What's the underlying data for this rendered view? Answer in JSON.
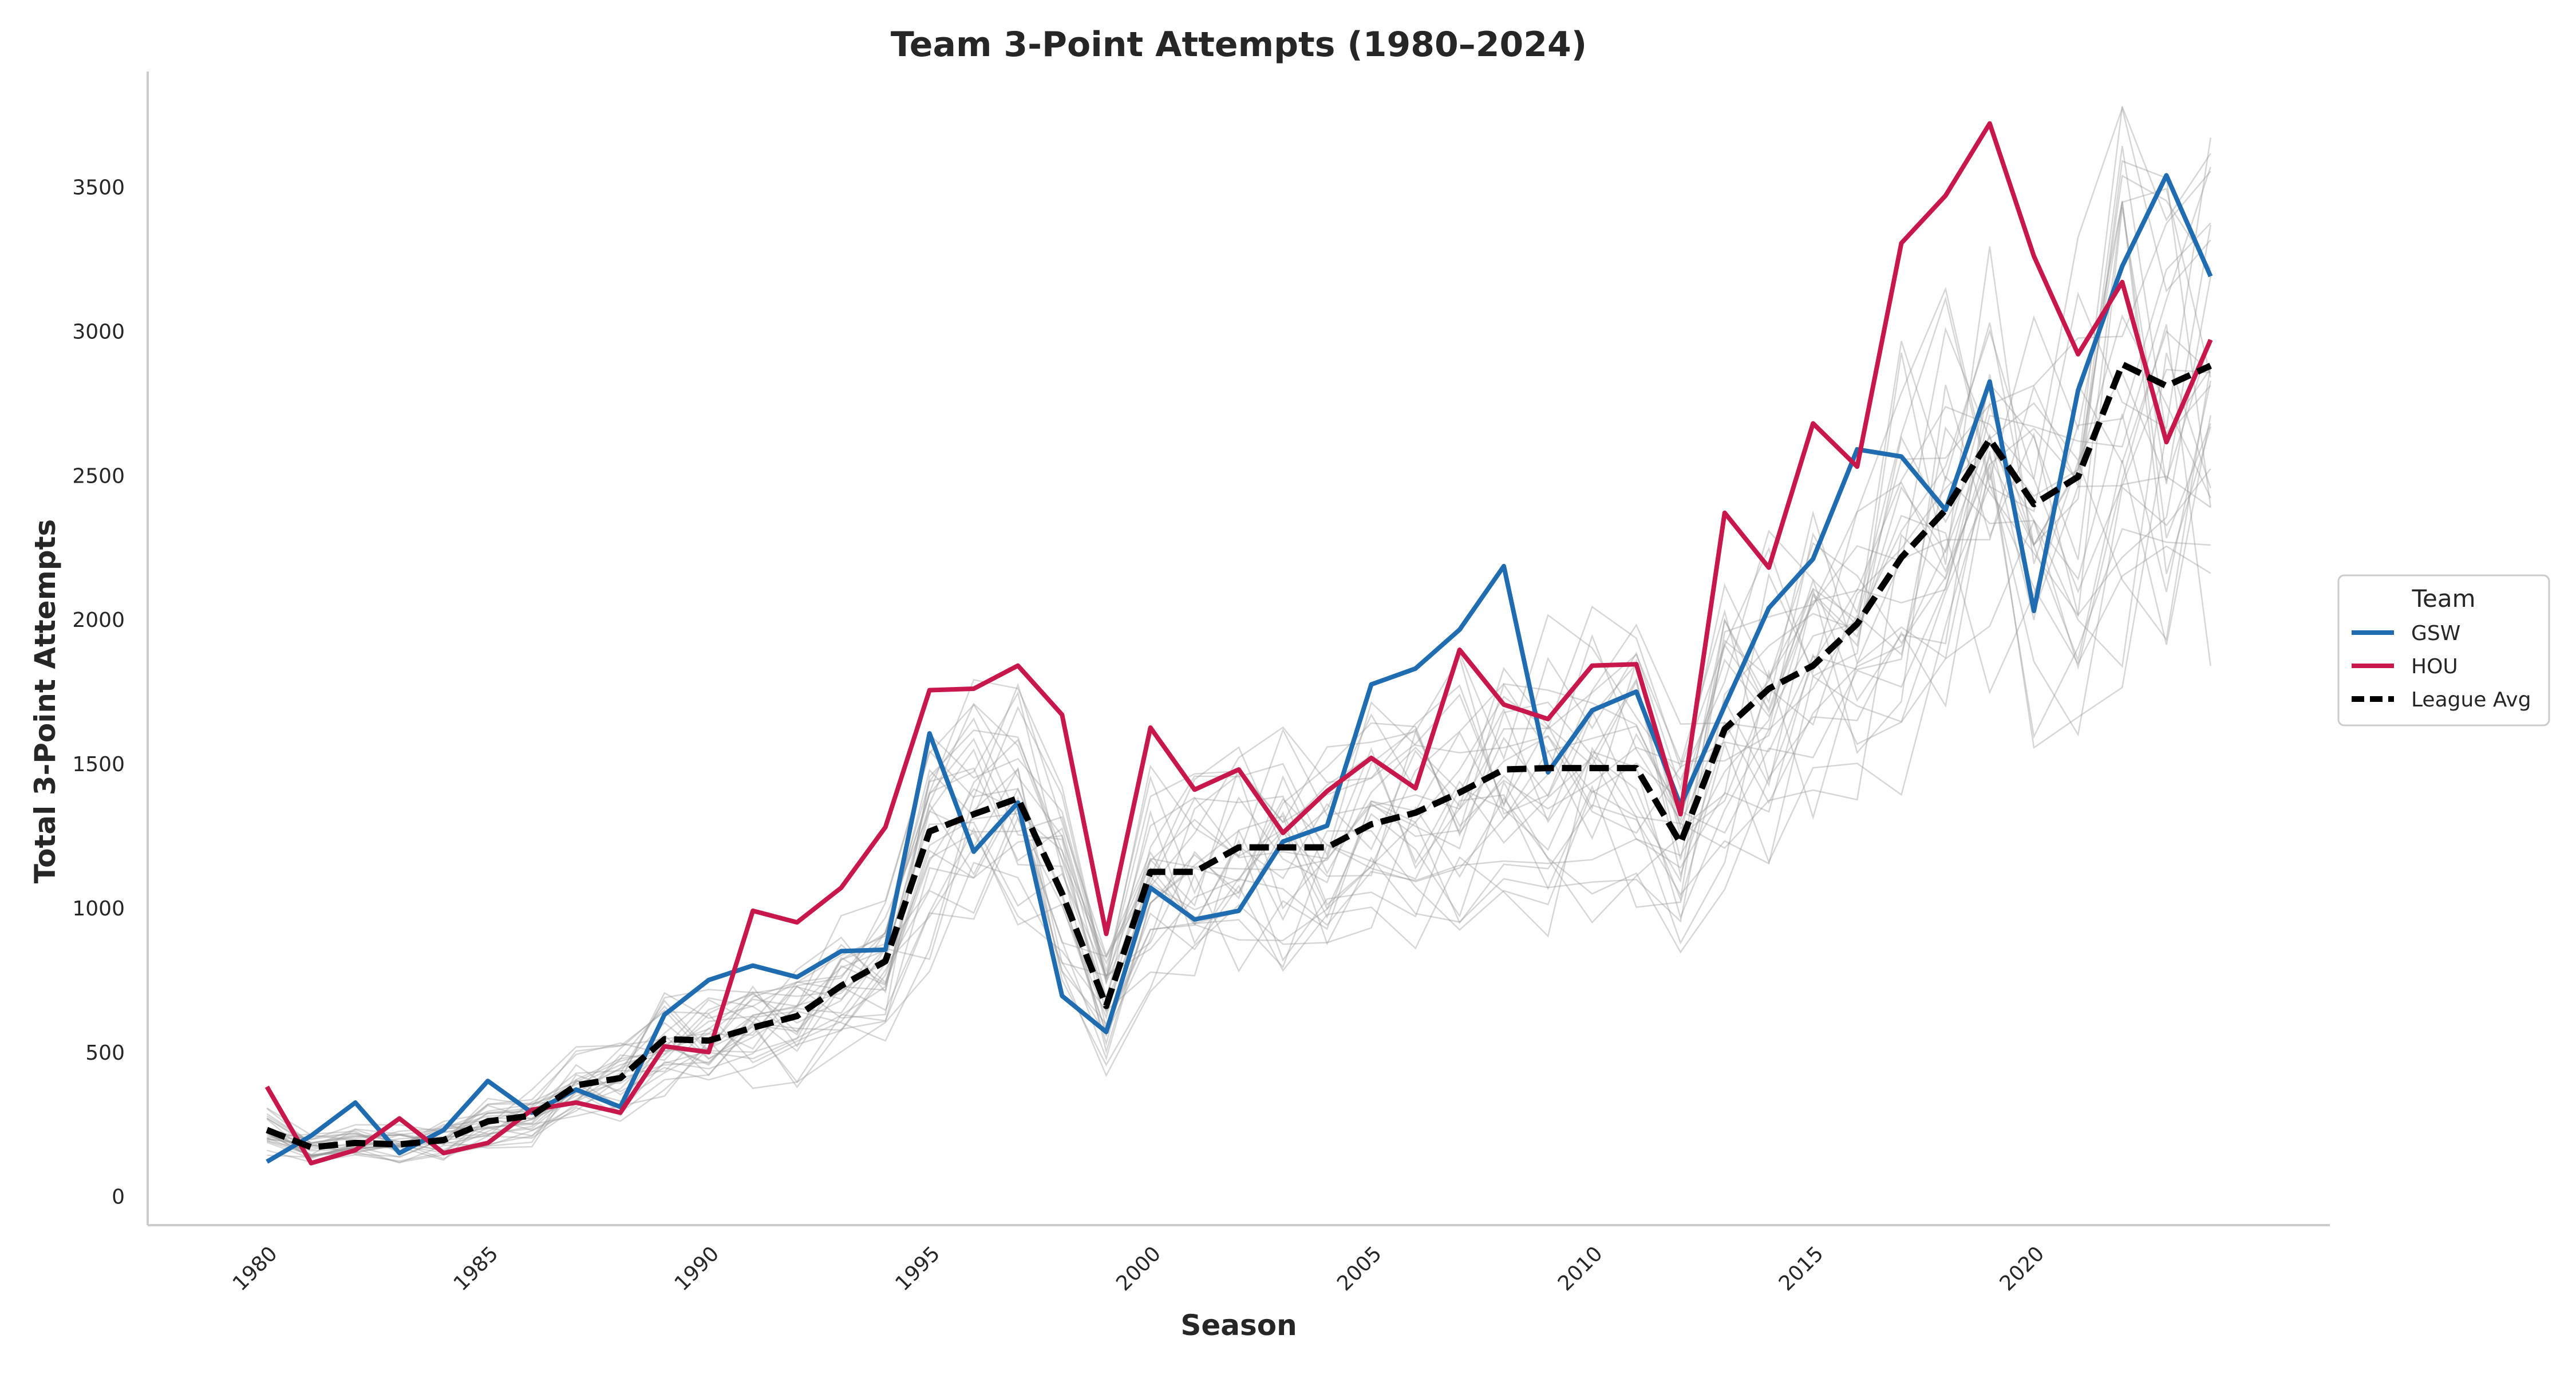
{
  "chart_data": {
    "type": "line",
    "title": "Team 3-Point Attempts (1980–2024)",
    "xlabel": "Season",
    "ylabel": "Total 3-Point Attempts",
    "xlim": [
      1977.3,
      2026.7
    ],
    "ylim": [
      -100,
      3900
    ],
    "xticks": [
      1980,
      1985,
      1990,
      1995,
      2000,
      2005,
      2010,
      2015,
      2020
    ],
    "yticks": [
      0,
      500,
      1000,
      1500,
      2000,
      2500,
      3000,
      3500
    ],
    "x_tick_labels": [
      "1980",
      "1985",
      "1990",
      "1995",
      "2000",
      "2005",
      "2010",
      "2015",
      "2020"
    ],
    "y_tick_labels": [
      "0",
      "500",
      "1000",
      "1500",
      "2000",
      "2500",
      "3000",
      "3500"
    ],
    "grid": false,
    "legend": {
      "title": "Team",
      "placement": "center-right outside",
      "entries": [
        "GSW",
        "HOU",
        "League Avg"
      ]
    },
    "x": [
      1980,
      1981,
      1982,
      1983,
      1984,
      1985,
      1986,
      1987,
      1988,
      1989,
      1990,
      1991,
      1992,
      1993,
      1994,
      1995,
      1996,
      1997,
      1998,
      1999,
      2000,
      2001,
      2002,
      2003,
      2004,
      2005,
      2006,
      2007,
      2008,
      2009,
      2010,
      2011,
      2012,
      2013,
      2014,
      2015,
      2016,
      2017,
      2018,
      2019,
      2020,
      2021,
      2022,
      2023,
      2024
    ],
    "series": [
      {
        "name": "GSW",
        "color": "#1f6db0",
        "style": "solid",
        "values": [
          120,
          210,
          325,
          150,
          230,
          400,
          290,
          370,
          310,
          630,
          750,
          800,
          760,
          850,
          855,
          1605,
          1195,
          1365,
          695,
          570,
          1070,
          960,
          990,
          1230,
          1285,
          1775,
          1830,
          1965,
          2185,
          1470,
          1685,
          1750,
          1355,
          1700,
          2040,
          2210,
          2590,
          2565,
          2380,
          2825,
          2030,
          2795,
          3225,
          3540,
          3190
        ]
      },
      {
        "name": "HOU",
        "color": "#c8174a",
        "style": "solid",
        "values": [
          380,
          115,
          160,
          270,
          150,
          185,
          300,
          325,
          290,
          520,
          500,
          990,
          950,
          1070,
          1280,
          1755,
          1760,
          1840,
          1670,
          910,
          1625,
          1410,
          1480,
          1260,
          1405,
          1520,
          1415,
          1895,
          1705,
          1655,
          1840,
          1845,
          1325,
          2370,
          2180,
          2680,
          2530,
          3305,
          3470,
          3720,
          3260,
          2920,
          3170,
          2615,
          2970
        ]
      },
      {
        "name": "League Avg",
        "color": "#000000",
        "style": "dashed",
        "values": [
          230,
          170,
          185,
          180,
          195,
          260,
          280,
          385,
          410,
          545,
          540,
          585,
          625,
          730,
          815,
          1265,
          1325,
          1380,
          1050,
          660,
          1125,
          1125,
          1210,
          1210,
          1210,
          1290,
          1330,
          1400,
          1480,
          1485,
          1485,
          1485,
          1225,
          1620,
          1760,
          1840,
          1985,
          2215,
          2380,
          2625,
          2400,
          2495,
          2885,
          2810,
          2880
        ]
      }
    ]
  }
}
